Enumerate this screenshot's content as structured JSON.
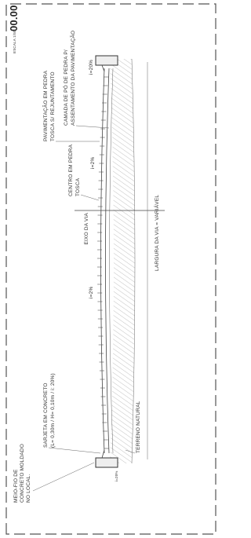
{
  "drawing": {
    "title": "00.00",
    "scale": "ESCALA 1/50",
    "curb": [
      "MEIO-FIO DE",
      "CONCRETO MOLDADO",
      "NO LOCAL."
    ],
    "gutter": [
      "SARJETA EM CONCRETO",
      "(L= 0,30m / H= 0,10m / i: 20%)"
    ],
    "ground": "TERRENO NATURAL",
    "axis": "EIXO DA VIA",
    "center": [
      "CENTRO EM PEDRA",
      "TOSCA"
    ],
    "slope_left": "i=2%",
    "slope_right": "i=2%",
    "slope_curb_left": "i=20%",
    "slope_curb_right": "i=20%",
    "width": "LARGURA DA VIA = VARIÁVEL",
    "paving": [
      "PAVIMENTAÇÃO EM PEDRA",
      "TOSCA S/ REJUNTAMENTO"
    ],
    "bedding": [
      "CAMADA DE PÓ DE PEDRA P/",
      "ASSENTAMENTO DA PAVIMENTAÇÃO"
    ]
  }
}
